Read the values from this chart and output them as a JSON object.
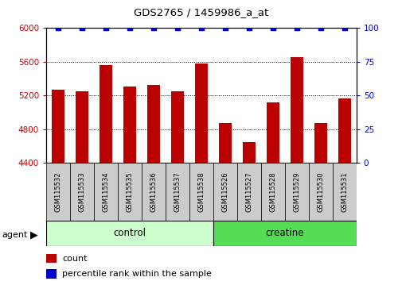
{
  "title": "GDS2765 / 1459986_a_at",
  "categories": [
    "GSM115532",
    "GSM115533",
    "GSM115534",
    "GSM115535",
    "GSM115536",
    "GSM115537",
    "GSM115538",
    "GSM115526",
    "GSM115527",
    "GSM115528",
    "GSM115529",
    "GSM115530",
    "GSM115531"
  ],
  "counts": [
    5270,
    5250,
    5560,
    5310,
    5330,
    5250,
    5580,
    4870,
    4650,
    5120,
    5660,
    4870,
    5170
  ],
  "percentiles": [
    100,
    100,
    100,
    100,
    100,
    100,
    100,
    100,
    100,
    100,
    100,
    100,
    100
  ],
  "bar_color": "#bb0000",
  "dot_color": "#0000cc",
  "ylim_left": [
    4400,
    6000
  ],
  "ylim_right": [
    0,
    100
  ],
  "yticks_left": [
    4400,
    4800,
    5200,
    5600,
    6000
  ],
  "yticks_right": [
    0,
    25,
    50,
    75,
    100
  ],
  "n_control": 7,
  "n_creatine": 6,
  "control_label": "control",
  "creatine_label": "creatine",
  "agent_label": "agent",
  "legend_count_label": "count",
  "legend_pct_label": "percentile rank within the sample",
  "control_color": "#ccffcc",
  "creatine_color": "#55dd55",
  "xtick_box_color": "#cccccc",
  "group_border_color": "#000000",
  "tick_color_left": "#cc0000",
  "tick_color_right": "#0000cc",
  "grid_color": "#000000",
  "background_color": "#ffffff",
  "bar_bottom": 4400
}
